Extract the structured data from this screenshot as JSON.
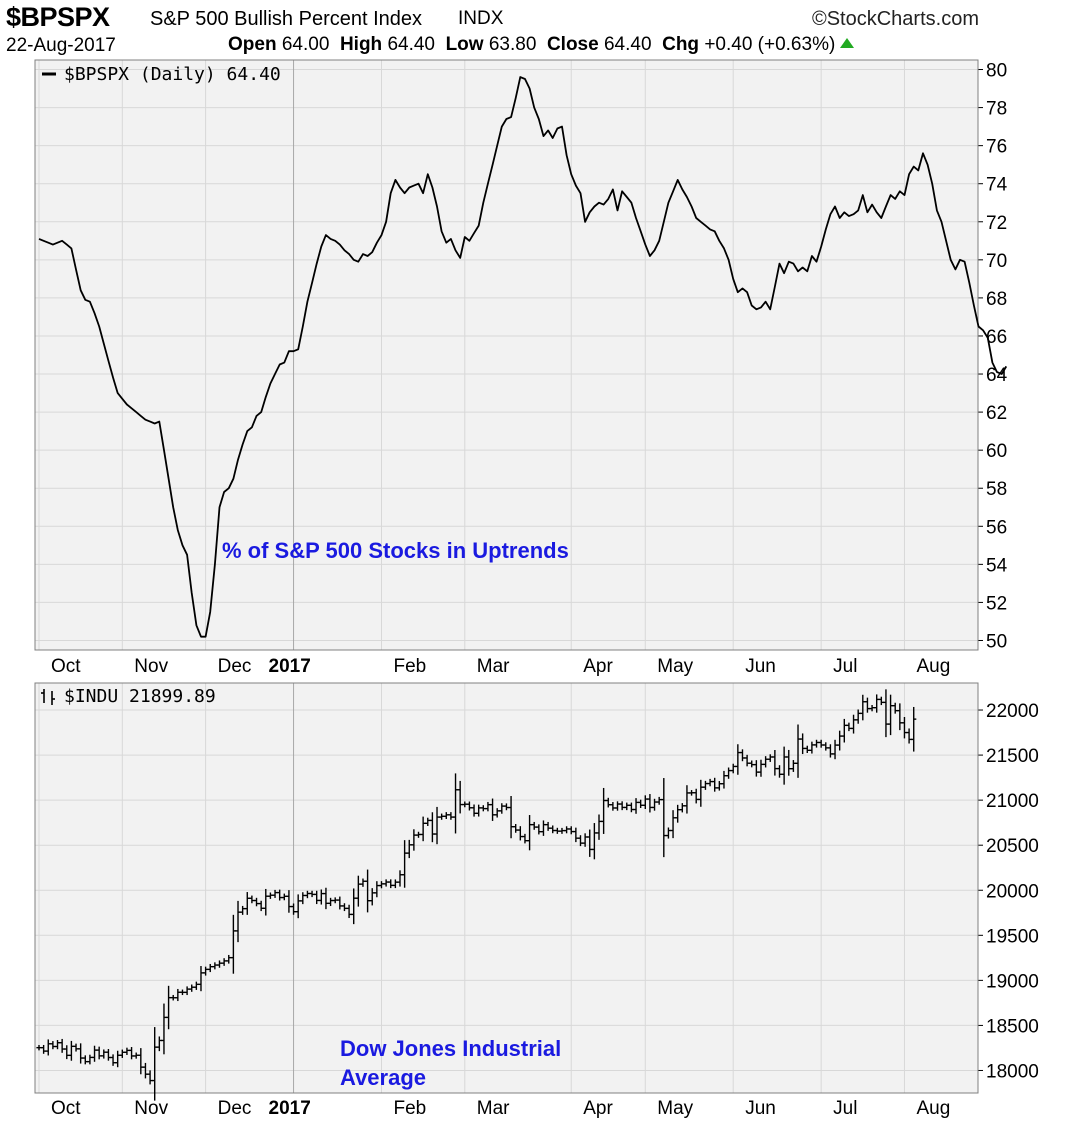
{
  "header": {
    "symbol": "$BPSPX",
    "description": "S&P 500 Bullish Percent Index",
    "exchange": "INDX",
    "brand": "©StockCharts.com",
    "date": "22-Aug-2017",
    "open_label": "Open",
    "open": "64.00",
    "high_label": "High",
    "high": "64.40",
    "low_label": "Low",
    "low": "63.80",
    "close_label": "Close",
    "close": "64.40",
    "chg_label": "Chg",
    "chg": "+0.40 (+0.63%)",
    "chg_arrow_icon": "up-triangle-icon",
    "chg_color": "#22aa22"
  },
  "colors": {
    "panel_background": "#f2f2f2",
    "grid": "#d8d8d8",
    "line": "#000000",
    "annotation": "#1a1ae0"
  },
  "chart_data": [
    {
      "type": "line",
      "legend": "$BPSPX (Daily) 64.40",
      "annotation": "% of S&P 500 Stocks in Uptrends",
      "ylim": [
        49.5,
        80.5
      ],
      "y_ticks": [
        50,
        52,
        54,
        56,
        58,
        60,
        62,
        64,
        66,
        68,
        70,
        72,
        74,
        76,
        78,
        80
      ],
      "month_labels": [
        "Oct",
        "Nov",
        "Dec",
        "2017",
        "Feb",
        "Mar",
        "Apr",
        "May",
        "Jun",
        "Jul",
        "Aug"
      ],
      "month_ticks": [
        0,
        18,
        36,
        55,
        74,
        92,
        115,
        131,
        150,
        169,
        187
      ],
      "grid": true,
      "series": [
        {
          "values": [
            71.1,
            71.0,
            70.9,
            70.8,
            70.9,
            71.0,
            70.8,
            70.6,
            69.5,
            68.4,
            67.9,
            67.8,
            67.2,
            66.5,
            65.6,
            64.7,
            63.8,
            63.0,
            62.7,
            62.4,
            62.2,
            62.0,
            61.8,
            61.6,
            61.5,
            61.4,
            61.5,
            60.0,
            58.5,
            57.0,
            55.8,
            55.0,
            54.5,
            52.5,
            50.8,
            50.2,
            50.2,
            51.5,
            54.0,
            57.0,
            57.8,
            58.0,
            58.5,
            59.5,
            60.3,
            61.0,
            61.2,
            61.8,
            62.0,
            62.8,
            63.5,
            64.0,
            64.5,
            64.6,
            65.2,
            65.2,
            65.3,
            66.5,
            67.8,
            68.8,
            69.8,
            70.7,
            71.3,
            71.1,
            71.0,
            70.8,
            70.5,
            70.3,
            70.0,
            69.9,
            70.3,
            70.2,
            70.4,
            70.9,
            71.3,
            72.0,
            73.5,
            74.2,
            73.8,
            73.5,
            73.8,
            73.9,
            74.0,
            73.5,
            74.5,
            73.8,
            72.8,
            71.5,
            70.9,
            71.1,
            70.5,
            70.1,
            71.2,
            71.0,
            71.4,
            71.8,
            73.0,
            74.0,
            75.0,
            76.0,
            77.0,
            77.4,
            77.5,
            78.5,
            79.6,
            79.5,
            79.0,
            78.0,
            77.4,
            76.5,
            76.8,
            76.4,
            76.9,
            77.0,
            75.5,
            74.5,
            73.9,
            73.5,
            72.0,
            72.5,
            72.8,
            73.0,
            72.9,
            73.2,
            73.7,
            72.6,
            73.6,
            73.3,
            73.0,
            72.2,
            71.5,
            70.8,
            70.2,
            70.5,
            71.0,
            72.0,
            73.0,
            73.6,
            74.2,
            73.7,
            73.3,
            72.8,
            72.2,
            72.0,
            71.8,
            71.6,
            71.5,
            71.0,
            70.6,
            70.0,
            69.0,
            68.3,
            68.5,
            68.3,
            67.6,
            67.4,
            67.5,
            67.8,
            67.4,
            68.6,
            69.8,
            69.3,
            69.9,
            69.8,
            69.4,
            69.6,
            69.4,
            70.2,
            69.9,
            70.7,
            71.6,
            72.4,
            72.8,
            72.2,
            72.5,
            72.3,
            72.4,
            72.6,
            73.4,
            72.5,
            72.9,
            72.5,
            72.2,
            72.8,
            73.4,
            73.2,
            73.6,
            73.4,
            74.5,
            74.9,
            74.7,
            75.6,
            75.0,
            74.0,
            72.6,
            72.0,
            71.0,
            70.0,
            69.5,
            70.0,
            69.9,
            68.8,
            67.6,
            66.5,
            66.3,
            65.9,
            64.6,
            64.1,
            64.0,
            64.4
          ]
        }
      ]
    },
    {
      "type": "bar",
      "legend": "$INDU 21899.89",
      "annotation_line1": "Dow Jones Industrial",
      "annotation_line2": "Average",
      "legend_icon": "ohlc-bars-icon",
      "ylim": [
        17750,
        22300
      ],
      "y_ticks": [
        18000,
        18500,
        19000,
        19500,
        20000,
        20500,
        21000,
        21500,
        22000
      ],
      "month_labels": [
        "Oct",
        "Nov",
        "Dec",
        "2017",
        "Feb",
        "Mar",
        "Apr",
        "May",
        "Jun",
        "Jul",
        "Aug"
      ],
      "month_ticks": [
        0,
        18,
        36,
        55,
        74,
        92,
        115,
        131,
        150,
        169,
        187
      ],
      "grid": true,
      "series": [
        {
          "name": "$INDU",
          "close": [
            18253,
            18215,
            18296,
            18266,
            18308,
            18238,
            18168,
            18268,
            18240,
            18138,
            18098,
            18145,
            18226,
            18162,
            18203,
            18144,
            18086,
            18169,
            18202,
            18223,
            18161,
            18169,
            18037,
            17959,
            17888,
            18259,
            18333,
            18589,
            18808,
            18807,
            18868,
            18867,
            18903,
            18924,
            18956,
            19083,
            19122,
            19152,
            19170,
            19191,
            19216,
            19252,
            19549,
            19757,
            19796,
            19911,
            19886,
            19852,
            19800,
            19934,
            19945,
            19974,
            19919,
            19933,
            19819,
            19762,
            19882,
            19942,
            19964,
            19954,
            19887,
            19963,
            19855,
            19886,
            19891,
            19826,
            19799,
            19732,
            19912,
            20068,
            20100,
            19884,
            19971,
            20052,
            20071,
            20091,
            20054,
            20090,
            20172,
            20412,
            20504,
            20612,
            20619,
            20743,
            20775,
            20624,
            20812,
            20821,
            20837,
            20812,
            21115,
            20951,
            20955,
            20915,
            20854,
            20914,
            20906,
            20950,
            20837,
            20881,
            20934,
            20918,
            20705,
            20668,
            20596,
            20550,
            20728,
            20701,
            20650,
            20728,
            20689,
            20663,
            20656,
            20662,
            20680,
            20651,
            20578,
            20523,
            20591,
            20453,
            20636,
            20764,
            20996,
            20949,
            20913,
            20957,
            20919,
            20943,
            20896,
            20975,
            20943,
            21012,
            20919,
            20979,
            21006,
            20607,
            20663,
            20804,
            20894,
            20937,
            21080,
            21082,
            21008,
            21144,
            21184,
            21206,
            21136,
            21182,
            21271,
            21328,
            21374,
            21528,
            21468,
            21410,
            21394,
            21311,
            21397,
            21454,
            21479,
            21350,
            21287,
            21479,
            21349,
            21409,
            21678,
            21574,
            21553,
            21613,
            21640,
            21612,
            21580,
            21513,
            21611,
            21711,
            21830,
            21796,
            21891,
            21963,
            22092,
            22016,
            22026,
            22118,
            22085,
            21844,
            22048,
            21993,
            21858,
            21750,
            21674,
            21899
          ]
        }
      ]
    }
  ]
}
